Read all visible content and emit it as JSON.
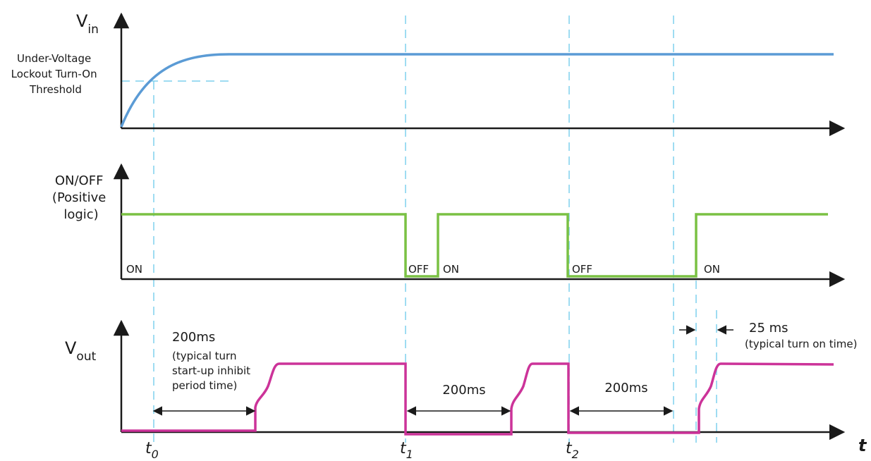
{
  "vin_panel": {
    "label_main": "V",
    "label_sub": "in",
    "threshold_lines": [
      "Under-Voltage",
      "Lockout Turn-On",
      "Threshold"
    ]
  },
  "onoff_panel": {
    "label_lines": [
      "ON/OFF",
      "(Positive",
      "logic)"
    ],
    "state_labels": [
      "ON",
      "OFF",
      "ON",
      "OFF",
      "ON"
    ]
  },
  "vout_panel": {
    "label_main": "V",
    "label_sub": "out",
    "inhibit_period": {
      "value": "200ms",
      "note_lines": [
        "(typical turn",
        "start-up inhibit",
        "period time)"
      ]
    },
    "period_2": "200ms",
    "period_3": "200ms",
    "turn_on": {
      "value": "25 ms",
      "note": "(typical turn on time)"
    }
  },
  "time_axis": {
    "axis_label": "t",
    "markers": [
      {
        "main": "t",
        "sub": "0"
      },
      {
        "main": "t",
        "sub": "1"
      },
      {
        "main": "t",
        "sub": "2"
      }
    ]
  },
  "colors": {
    "vin": "#5b9bd5",
    "onoff": "#7ac143",
    "vout": "#cc3399",
    "guide": "#7fd0ee",
    "axis": "#1a1a1a"
  }
}
